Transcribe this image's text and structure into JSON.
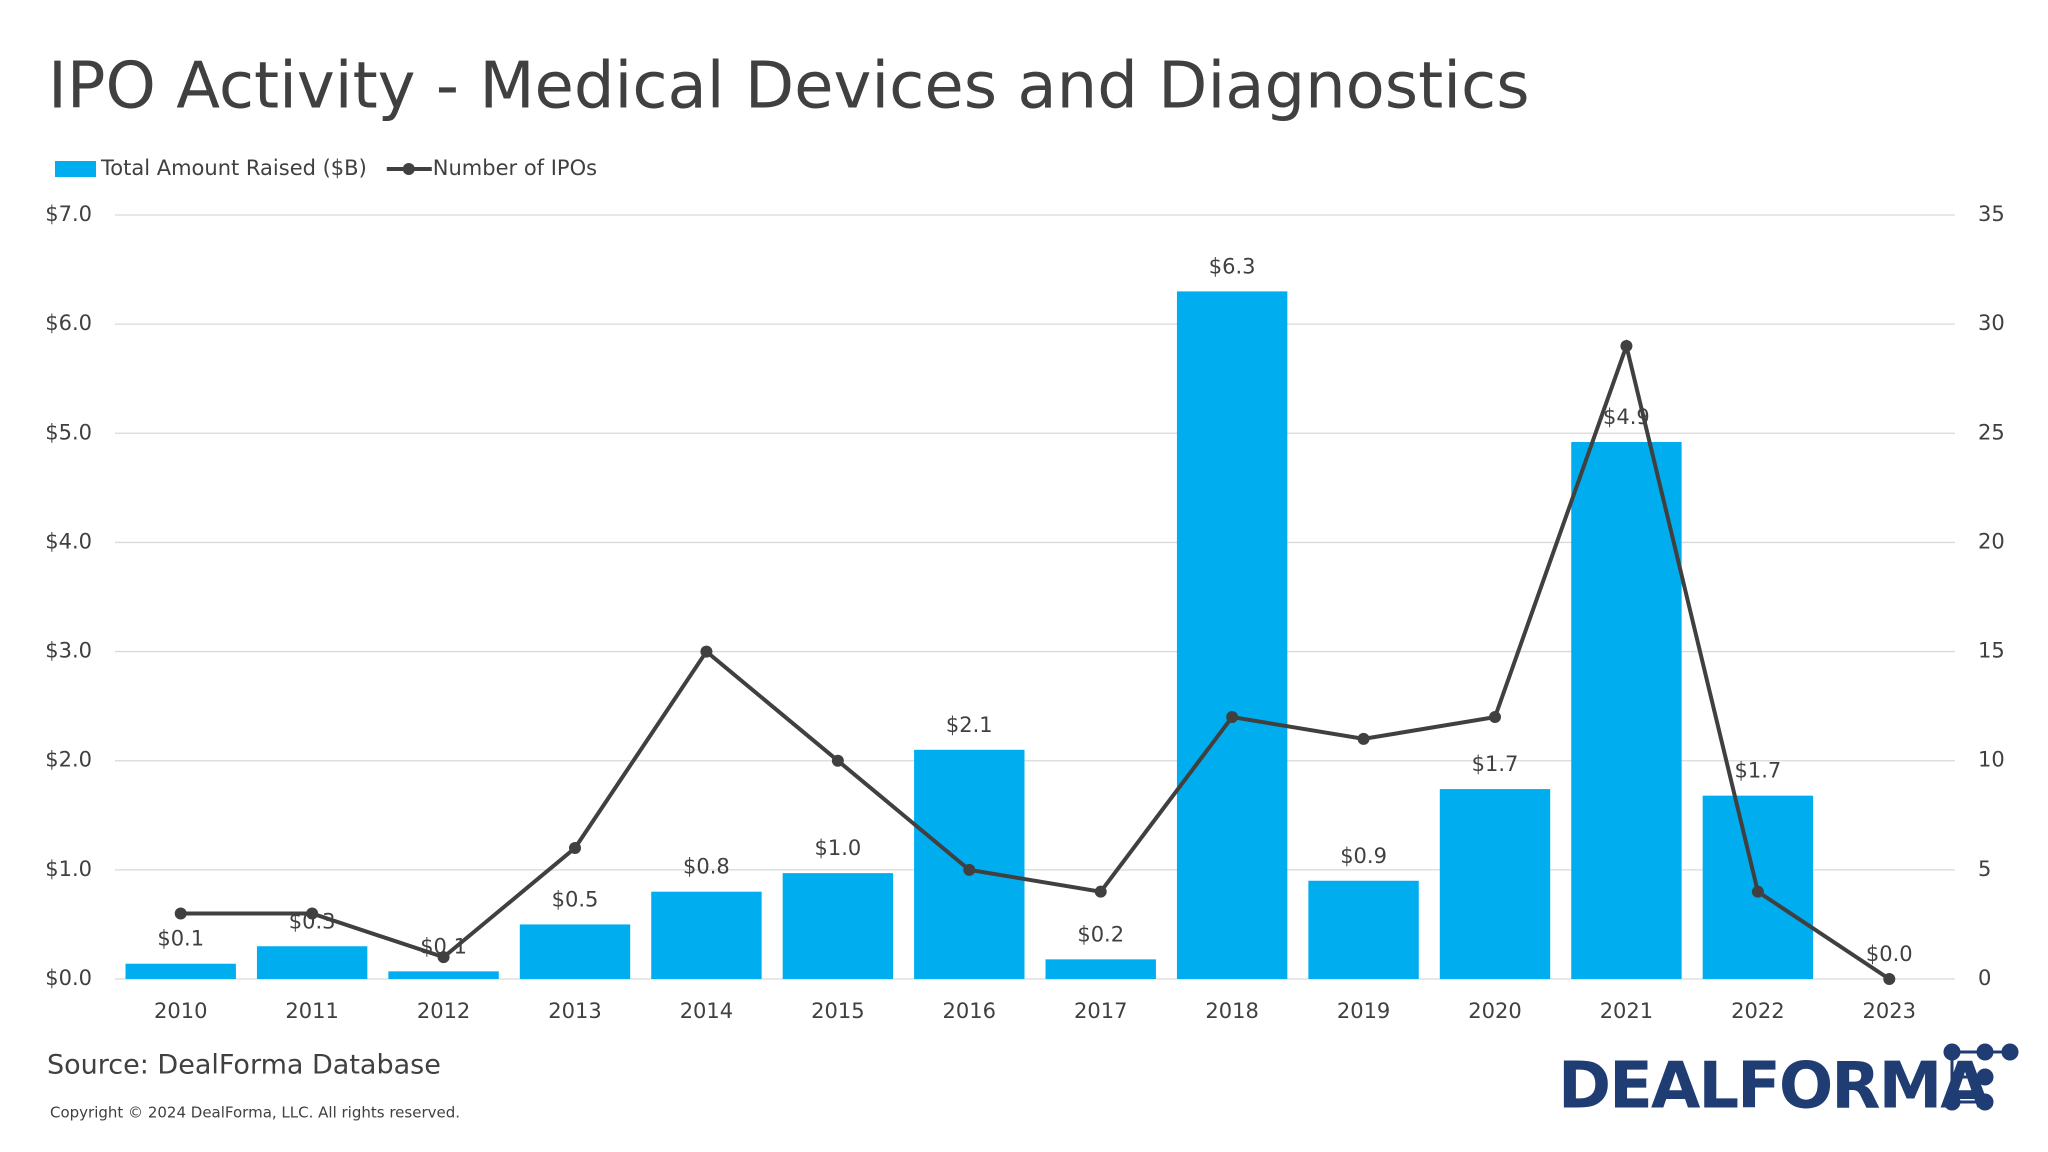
{
  "chart_data": {
    "type": "bar-line",
    "title": "IPO Activity - Medical Devices and Diagnostics",
    "categories": [
      "2010",
      "2011",
      "2012",
      "2013",
      "2014",
      "2015",
      "2016",
      "2017",
      "2018",
      "2019",
      "2020",
      "2021",
      "2022",
      "2023"
    ],
    "series": [
      {
        "name": "Total Amount Raised ($B)",
        "type": "bar",
        "axis": "y",
        "color": "#00aeef",
        "values": [
          0.14,
          0.3,
          0.07,
          0.5,
          0.8,
          0.97,
          2.1,
          0.18,
          6.3,
          0.9,
          1.74,
          4.92,
          1.68,
          0.0
        ],
        "value_labels": [
          "$0.1",
          "$0.3",
          "$0.1",
          "$0.5",
          "$0.8",
          "$1.0",
          "$2.1",
          "$0.2",
          "$6.3",
          "$0.9",
          "$1.7",
          "$4.9",
          "$1.7",
          "$0.0"
        ]
      },
      {
        "name": "Number of IPOs",
        "type": "line",
        "axis": "y2",
        "color": "#404040",
        "values": [
          3,
          3,
          1,
          6,
          15,
          10,
          5,
          4,
          12,
          11,
          12,
          29,
          4,
          0
        ]
      }
    ],
    "ylim": [
      0,
      7
    ],
    "yticks": [
      {
        "value": 0,
        "label": "$0.0"
      },
      {
        "value": 1,
        "label": "$1.0"
      },
      {
        "value": 2,
        "label": "$2.0"
      },
      {
        "value": 3,
        "label": "$3.0"
      },
      {
        "value": 4,
        "label": "$4.0"
      },
      {
        "value": 5,
        "label": "$5.0"
      },
      {
        "value": 6,
        "label": "$6.0"
      },
      {
        "value": 7,
        "label": "$7.0"
      }
    ],
    "y2lim": [
      0,
      35
    ],
    "y2ticks": [
      0,
      5,
      10,
      15,
      20,
      25,
      30,
      35
    ],
    "grid": true,
    "legend": "top-left",
    "source": "Source: DealForma Database",
    "copyright": "Copyright © 2024 DealForma, LLC. All rights reserved.",
    "logo": "DEALFORMA"
  }
}
